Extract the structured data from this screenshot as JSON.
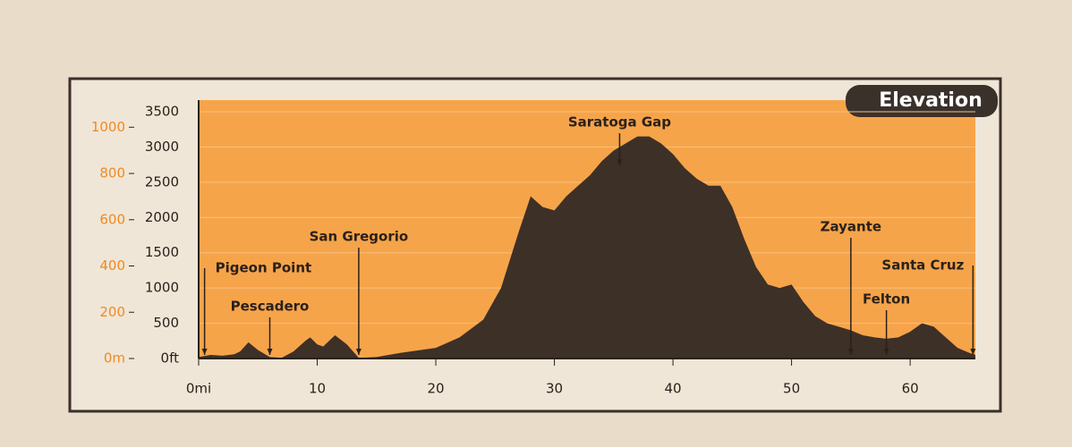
{
  "chart_data": {
    "type": "area",
    "title": "Elevation",
    "x": [
      0,
      1,
      2,
      3,
      3.5,
      4.2,
      5,
      6,
      7,
      8,
      9,
      9.4,
      10,
      10.5,
      11.5,
      12.5,
      13.5,
      15,
      17,
      20,
      22,
      24,
      25.5,
      27,
      28,
      29,
      30,
      31,
      32,
      33,
      34,
      35,
      36,
      37,
      38,
      39,
      40,
      41,
      42,
      43,
      44,
      45,
      46,
      47,
      48,
      49,
      50,
      51,
      52,
      53,
      54,
      55,
      56,
      57,
      58,
      59,
      60,
      61,
      62,
      63,
      64,
      65,
      65.5
    ],
    "series": [
      {
        "name": "Elevation",
        "color": "#3d3027",
        "values": [
          20,
          50,
          40,
          60,
          100,
          230,
          120,
          20,
          10,
          100,
          250,
          300,
          200,
          170,
          330,
          200,
          10,
          20,
          80,
          150,
          300,
          550,
          1000,
          1800,
          2300,
          2150,
          2100,
          2300,
          2450,
          2600,
          2800,
          2950,
          3050,
          3150,
          3150,
          3050,
          2900,
          2700,
          2550,
          2450,
          2450,
          2150,
          1700,
          1300,
          1050,
          1000,
          1050,
          800,
          600,
          500,
          450,
          400,
          330,
          300,
          280,
          300,
          380,
          500,
          450,
          300,
          150,
          80,
          50
        ]
      }
    ],
    "xlim": [
      0,
      65.5
    ],
    "xticks": [
      {
        "value": 0,
        "label": "0mi"
      },
      10,
      20,
      30,
      40,
      50,
      60
    ],
    "ylim": [
      0,
      3500
    ],
    "yticks": [
      {
        "value": 0,
        "label": "0ft"
      },
      500,
      1000,
      1500,
      2000,
      2500,
      3000,
      3500
    ],
    "y2lim": [
      0,
      1066.8
    ],
    "y2ticks": [
      {
        "value": 0,
        "label": "0m"
      },
      200,
      400,
      600,
      800,
      1000
    ],
    "grid": true,
    "annotations": [
      {
        "text": "Pigeon Point",
        "x": 0.5
      },
      {
        "text": "Pescadero",
        "x": 6
      },
      {
        "text": "San Gregorio",
        "x": 13.5
      },
      {
        "text": "Saratoga Gap",
        "x": 35.5
      },
      {
        "text": "Zayante",
        "x": 55
      },
      {
        "text": "Felton",
        "x": 58
      },
      {
        "text": "Santa Cruz",
        "x": 65.3
      }
    ]
  }
}
